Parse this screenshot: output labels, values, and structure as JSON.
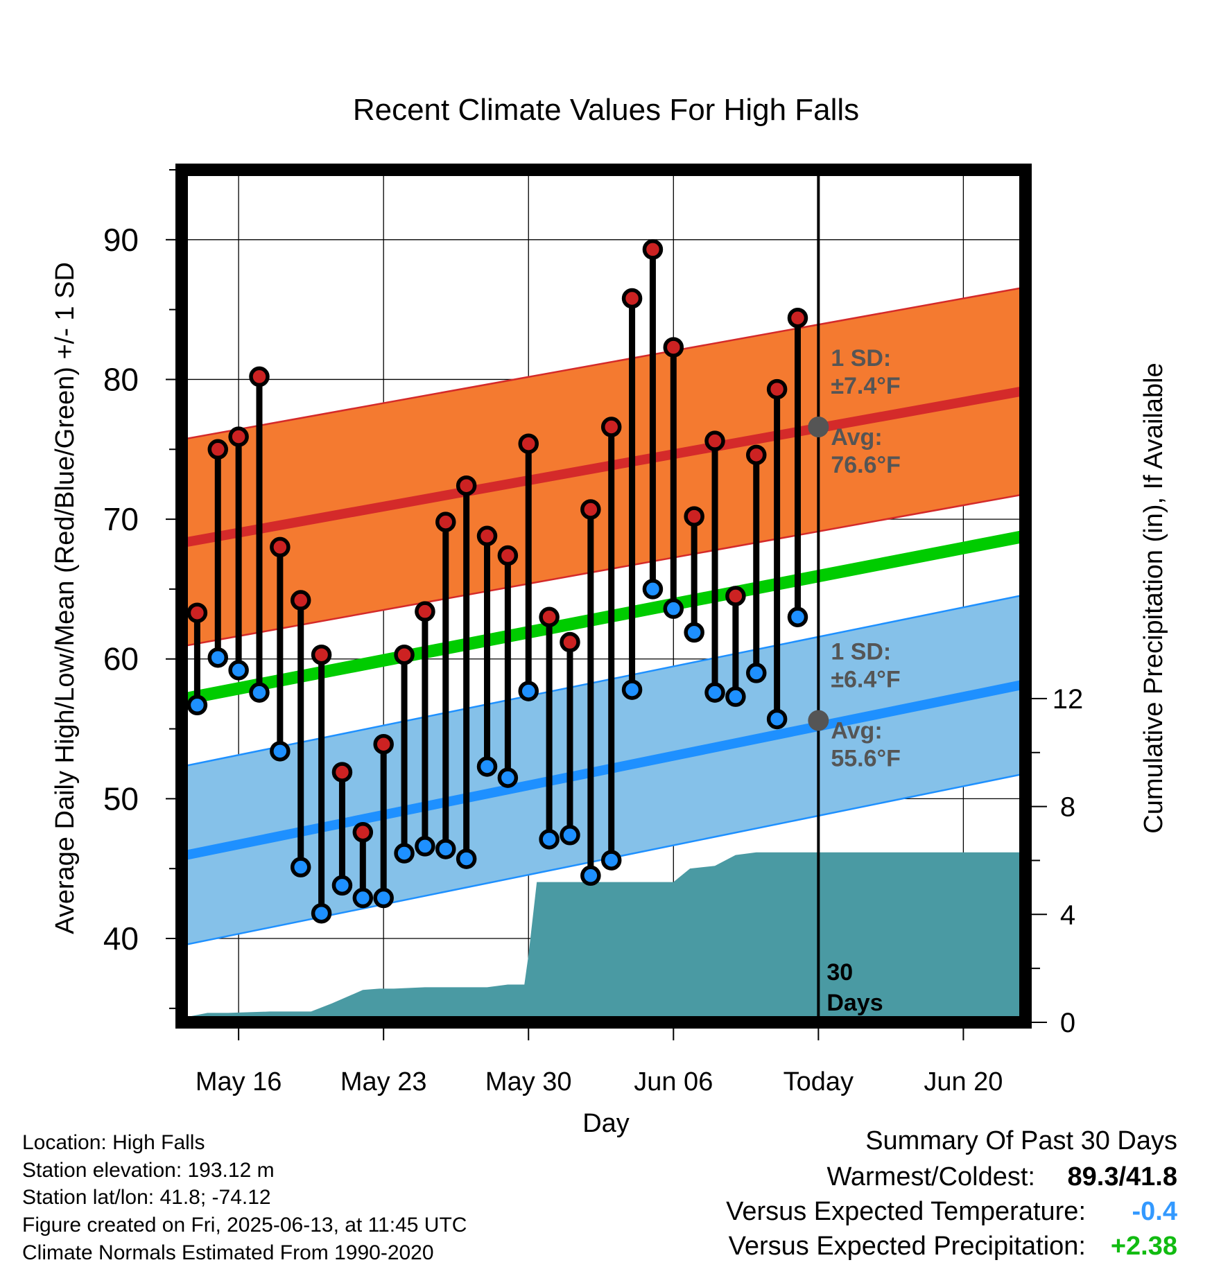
{
  "chart_data": {
    "type": "line",
    "title": "Recent Climate Values For High Falls",
    "xlabel": "Day",
    "ylabel": "Average Daily High/Low/Mean (Red/Blue/Green) +/- 1 SD",
    "y2label": "Cumulative Precipitation (in), If Available",
    "ylim": [
      34,
      95
    ],
    "y2lim": [
      0,
      31.6
    ],
    "yticks": [
      "40",
      "50",
      "60",
      "70",
      "80",
      "90"
    ],
    "y2ticks": [
      "0",
      "4",
      "8",
      "12"
    ],
    "xticks": [
      {
        "day": 3,
        "label": "May 16"
      },
      {
        "day": 10,
        "label": "May 23"
      },
      {
        "day": 17,
        "label": "May 30"
      },
      {
        "day": 24,
        "label": "Jun 06"
      },
      {
        "day": 31,
        "label": "Today"
      },
      {
        "day": 38,
        "label": "Jun 20"
      }
    ],
    "day_range": [
      0.25,
      41
    ],
    "grid": true,
    "normals": {
      "high_avg": [
        68.3,
        79.2
      ],
      "high_sd": 7.4,
      "low_avg": [
        45.9,
        58.2
      ],
      "low_sd": 6.4,
      "mean_avg": [
        57.1,
        68.8
      ]
    },
    "series": [
      {
        "name": "High",
        "color": "#cc2222",
        "values": [
          63.3,
          75.0,
          75.9,
          80.2,
          68.0,
          64.2,
          60.3,
          51.9,
          47.6,
          53.9,
          60.3,
          63.4,
          69.8,
          72.4,
          68.8,
          67.4,
          75.4,
          63.0,
          61.2,
          70.7,
          76.6,
          85.8,
          89.3,
          82.3,
          70.2,
          75.6,
          64.5,
          74.6,
          79.3,
          84.4
        ]
      },
      {
        "name": "Low",
        "color": "#1e90ff",
        "values": [
          56.7,
          60.1,
          59.2,
          57.6,
          53.4,
          45.1,
          41.8,
          43.8,
          42.9,
          42.9,
          46.1,
          46.6,
          46.4,
          45.7,
          52.3,
          51.5,
          57.7,
          47.1,
          47.4,
          44.5,
          45.6,
          57.8,
          65.0,
          63.6,
          61.9,
          57.6,
          57.3,
          59.0,
          55.7,
          63.0
        ]
      }
    ],
    "precip_cumulative": {
      "days": [
        0.25,
        0.5,
        1.5,
        2.5,
        4.5,
        5.5,
        6.5,
        7.5,
        9.0,
        9.8,
        10.5,
        12.0,
        14.0,
        15.0,
        16.0,
        16.8,
        17.0,
        17.4,
        18.0,
        23.0,
        24.0,
        24.8,
        26.0,
        27.0,
        28.0,
        29.0,
        31.0,
        41.0
      ],
      "values": [
        0.0,
        0.2,
        0.35,
        0.35,
        0.4,
        0.4,
        0.4,
        0.7,
        1.2,
        1.25,
        1.25,
        1.3,
        1.3,
        1.3,
        1.4,
        1.4,
        2.5,
        5.2,
        5.2,
        5.2,
        5.2,
        5.7,
        5.8,
        6.2,
        6.3,
        6.3,
        6.3,
        6.3
      ]
    },
    "today_markers": {
      "high": {
        "avg": "Avg:",
        "avg_value": "76.6°F",
        "avg_num": 76.6,
        "sd": "1 SD:",
        "sd_value": "±7.4°F"
      },
      "low": {
        "avg": "Avg:",
        "avg_value": "55.6°F",
        "avg_num": 55.6,
        "sd": "1 SD:",
        "sd_value": "±6.4°F"
      }
    },
    "days_label": [
      "30",
      "Days"
    ]
  },
  "info": {
    "location": "Location: High Falls",
    "elevation": "Station elevation: 193.12 m",
    "latlon": "Station lat/lon: 41.8; -74.12",
    "created": "Figure created on Fri, 2025-06-13, at 11:45 UTC",
    "normals": "Climate Normals Estimated From 1990-2020"
  },
  "summary": {
    "title": "Summary Of Past 30 Days",
    "warm_cold_label": "Warmest/Coldest:",
    "warm_cold_value": "89.3/41.8",
    "temp_label": "Versus Expected Temperature:",
    "temp_value": "-0.4",
    "precip_label": "Versus Expected Precipitation:",
    "precip_value": "+2.38"
  },
  "colors": {
    "high_band": "#f47a30",
    "high_line": "#d42a2a",
    "low_band": "#85c1e9",
    "low_line": "#1e90ff",
    "mean_line": "#00cc00",
    "precip": "#4a9aa3",
    "marker_avg": "#555555",
    "annotation": "#555555",
    "temp_delta": "#3399ff",
    "precip_delta": "#11bb11"
  }
}
